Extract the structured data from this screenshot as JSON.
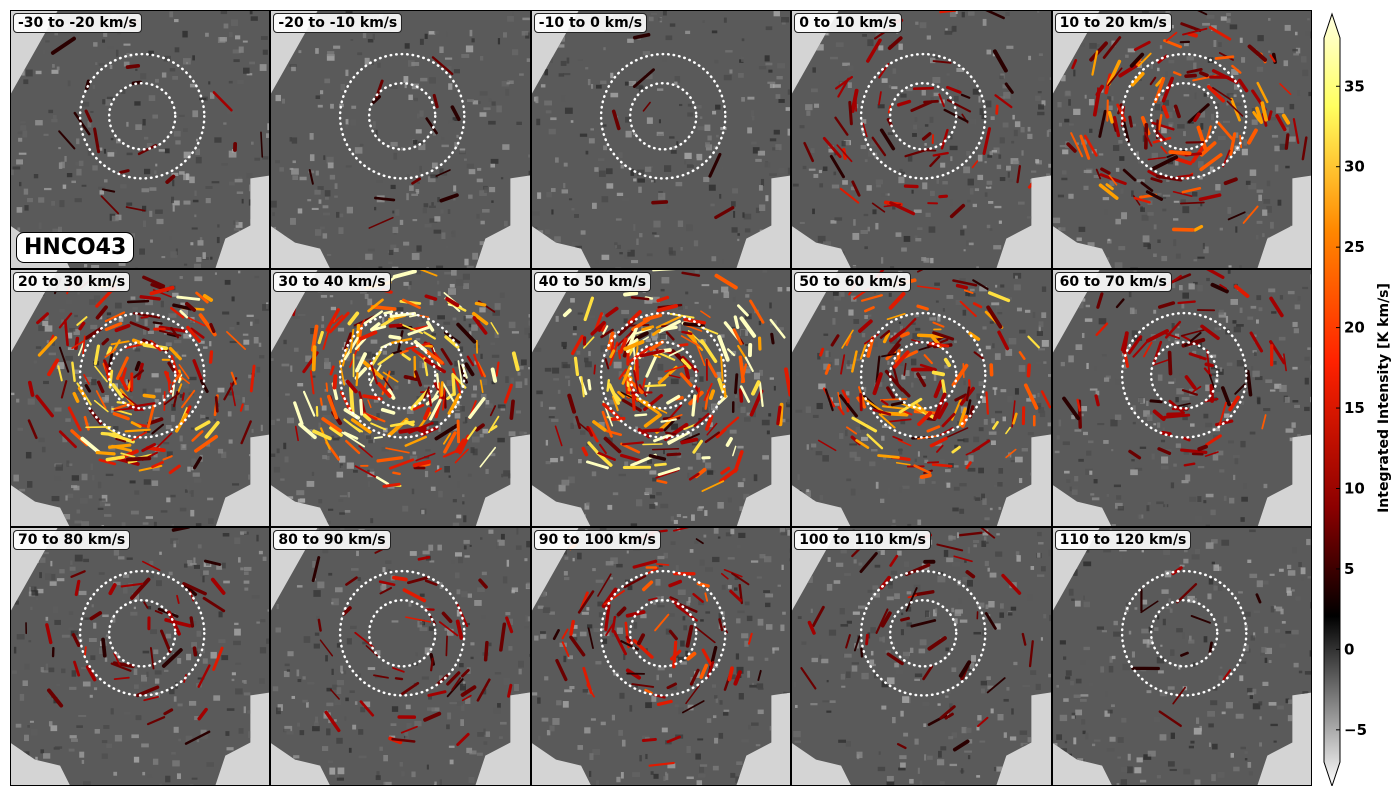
{
  "molecule_label": "HNCO43",
  "panels": [
    {
      "label": "-30 to -20 km/s",
      "level": 0.08
    },
    {
      "label": "-20 to -10 km/s",
      "level": 0.05
    },
    {
      "label": "-10 to 0 km/s",
      "level": 0.03
    },
    {
      "label": "0 to 10 km/s",
      "level": 0.25
    },
    {
      "label": "10 to 20 km/s",
      "level": 0.55
    },
    {
      "label": "20 to 30 km/s",
      "level": 0.75
    },
    {
      "label": "30 to 40 km/s",
      "level": 0.9
    },
    {
      "label": "40 to 50 km/s",
      "level": 0.95
    },
    {
      "label": "50 to 60 km/s",
      "level": 0.65
    },
    {
      "label": "60 to 70 km/s",
      "level": 0.3
    },
    {
      "label": "70 to 80 km/s",
      "level": 0.2
    },
    {
      "label": "80 to 90 km/s",
      "level": 0.22
    },
    {
      "label": "90 to 100 km/s",
      "level": 0.35
    },
    {
      "label": "100 to 110 km/s",
      "level": 0.18
    },
    {
      "label": "110 to 120 km/s",
      "level": 0.05
    }
  ],
  "colorbar": {
    "label": "Integrated Intensity [K km/s]",
    "vmin": -7,
    "vmax": 38,
    "ticks": [
      "35",
      "30",
      "25",
      "20",
      "15",
      "10",
      "5",
      "0",
      "−5"
    ],
    "tick_values": [
      35,
      30,
      25,
      20,
      15,
      10,
      5,
      0,
      -5
    ],
    "colormap_stops": [
      "#ffffff",
      "#000000",
      "#8b0000",
      "#ff2200",
      "#ff8800",
      "#ffff60",
      "#ffffe0"
    ]
  },
  "colors": {
    "background": "#d4d4d4",
    "circle": "#ffffff"
  }
}
